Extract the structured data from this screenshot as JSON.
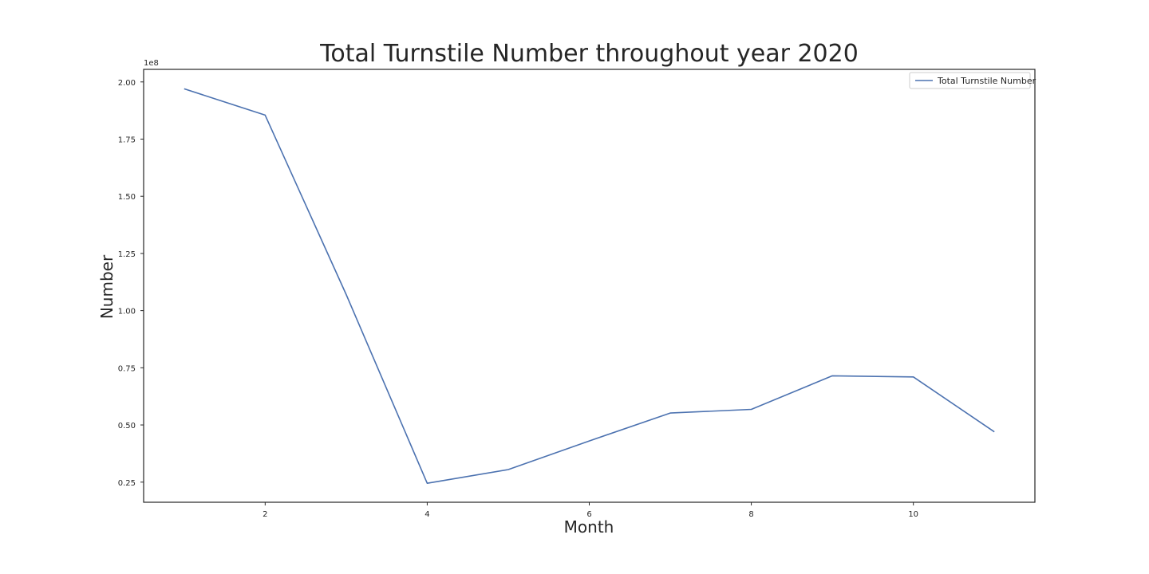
{
  "chart_data": {
    "type": "line",
    "title": "Total Turnstile Number throughout year 2020",
    "xlabel": "Month",
    "ylabel": "Number",
    "y_offset_label": "1e8",
    "x": [
      1,
      2,
      3,
      4,
      5,
      6,
      7,
      8,
      9,
      10,
      11
    ],
    "series": [
      {
        "name": "Total Turnstile Number",
        "color": "#4c72b0",
        "values": [
          1.97,
          1.855,
          1.07,
          0.245,
          0.305,
          0.43,
          0.552,
          0.568,
          0.715,
          0.71,
          0.47
        ]
      }
    ],
    "xlim": [
      0.5,
      11.5
    ],
    "ylim": [
      0.162,
      2.055
    ],
    "x_ticks": [
      2,
      4,
      6,
      8,
      10
    ],
    "x_tick_labels": [
      "2",
      "4",
      "6",
      "8",
      "10"
    ],
    "y_ticks": [
      0.25,
      0.5,
      0.75,
      1.0,
      1.25,
      1.5,
      1.75,
      2.0
    ],
    "y_tick_labels": [
      "0.25",
      "0.50",
      "0.75",
      "1.00",
      "1.25",
      "1.50",
      "1.75",
      "2.00"
    ],
    "grid": false,
    "legend_position": "top-right"
  }
}
